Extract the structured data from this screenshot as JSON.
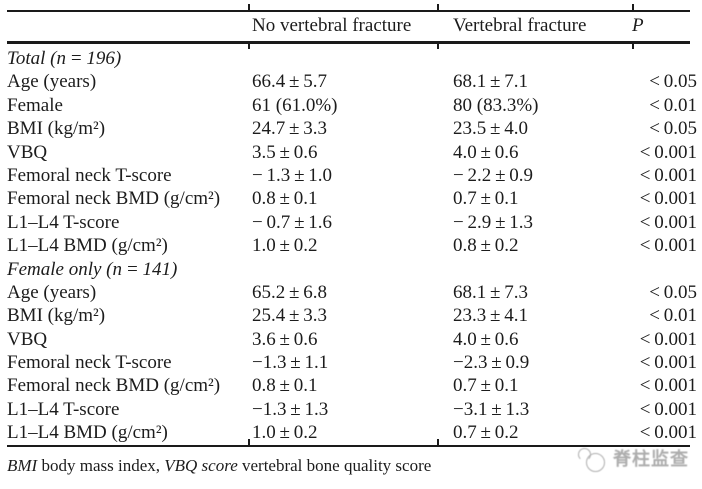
{
  "table": {
    "header": {
      "no_fracture": "No vertebral fracture",
      "fracture": "Vertebral fracture",
      "p": "P"
    },
    "rows": [
      {
        "type": "section",
        "label": "Total (n = 196)",
        "values": [
          "",
          "",
          ""
        ]
      },
      {
        "type": "data",
        "label": "Age (years)",
        "values": [
          "66.4 ± 5.7",
          "68.1 ± 7.1",
          "< 0.05"
        ]
      },
      {
        "type": "data",
        "label": "Female",
        "values": [
          "61 (61.0%)",
          "80 (83.3%)",
          "< 0.01"
        ]
      },
      {
        "type": "data",
        "label": "BMI (kg/m²)",
        "values": [
          "24.7 ± 3.3",
          "23.5 ± 4.0",
          "< 0.05"
        ]
      },
      {
        "type": "data",
        "label": "VBQ",
        "values": [
          "3.5 ± 0.6",
          "4.0 ± 0.6",
          "< 0.001"
        ]
      },
      {
        "type": "data",
        "label": "Femoral neck T-score",
        "values": [
          "− 1.3 ± 1.0",
          "− 2.2 ± 0.9",
          "< 0.001"
        ]
      },
      {
        "type": "data",
        "label": "Femoral neck BMD (g/cm²)",
        "values": [
          "0.8 ± 0.1",
          "0.7 ± 0.1",
          "< 0.001"
        ]
      },
      {
        "type": "data",
        "label": "L1–L4 T-score",
        "values": [
          "− 0.7 ± 1.6",
          "− 2.9 ± 1.3",
          "< 0.001"
        ]
      },
      {
        "type": "data",
        "label": "L1–L4 BMD (g/cm²)",
        "values": [
          "1.0 ± 0.2",
          "0.8 ± 0.2",
          "< 0.001"
        ]
      },
      {
        "type": "section",
        "label": "Female only (n = 141)",
        "values": [
          "",
          "",
          ""
        ]
      },
      {
        "type": "data",
        "label": "Age (years)",
        "values": [
          "65.2 ± 6.8",
          "68.1 ± 7.3",
          "< 0.05"
        ]
      },
      {
        "type": "data",
        "label": "BMI (kg/m²)",
        "values": [
          "25.4 ± 3.3",
          "23.3 ± 4.1",
          "< 0.01"
        ]
      },
      {
        "type": "data",
        "label": "VBQ",
        "values": [
          "3.6 ± 0.6",
          "4.0 ± 0.6",
          "< 0.001"
        ]
      },
      {
        "type": "data",
        "label": "Femoral neck T-score",
        "values": [
          "−1.3 ± 1.1",
          "−2.3 ± 0.9",
          "< 0.001"
        ]
      },
      {
        "type": "data",
        "label": "Femoral neck BMD (g/cm²)",
        "values": [
          "0.8 ± 0.1",
          "0.7 ± 0.1",
          "< 0.001"
        ]
      },
      {
        "type": "data",
        "label": "L1–L4 T-score",
        "values": [
          "−1.3 ± 1.3",
          "−3.1 ± 1.3",
          "< 0.001"
        ]
      },
      {
        "type": "data",
        "label": "L1–L4 BMD (g/cm²)",
        "values": [
          "1.0 ± 0.2",
          "0.7 ± 0.2",
          "< 0.001"
        ]
      }
    ]
  },
  "footnote": {
    "segments": [
      {
        "text": "BMI",
        "italic": true
      },
      {
        "text": " body mass index, ",
        "italic": false
      },
      {
        "text": "VBQ score",
        "italic": true
      },
      {
        "text": " vertebral bone quality score",
        "italic": false
      }
    ]
  },
  "watermark": {
    "text": "脊柱监查"
  },
  "colors": {
    "text": "#1c1c1c",
    "rule": "#1a1a1a",
    "watermark": "#adadad",
    "background": "#ffffff"
  }
}
